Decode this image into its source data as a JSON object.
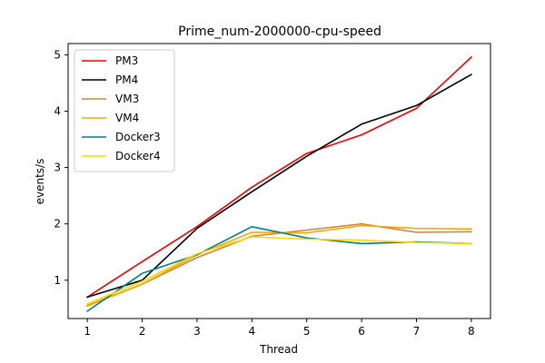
{
  "chart_data": {
    "type": "line",
    "title": "Prime_num-2000000-cpu-speed",
    "xlabel": "Thread",
    "ylabel": "events/s",
    "x": [
      1,
      2,
      3,
      4,
      5,
      6,
      7,
      8
    ],
    "xlim": [
      0.65,
      8.35
    ],
    "ylim": [
      0.32,
      5.2
    ],
    "xticks": [
      1,
      2,
      3,
      4,
      5,
      6,
      7,
      8
    ],
    "yticks": [
      1,
      2,
      3,
      4,
      5
    ],
    "grid": false,
    "legend_position": "top-left",
    "series": [
      {
        "name": "PM3",
        "color": "#ee0000",
        "values": [
          0.7,
          1.33,
          1.95,
          2.65,
          3.25,
          3.58,
          4.05,
          4.96
        ]
      },
      {
        "name": "PM4",
        "color": "#000000",
        "values": [
          0.7,
          1.0,
          1.92,
          2.57,
          3.2,
          3.77,
          4.1,
          4.65
        ]
      },
      {
        "name": "VM3",
        "color": "#cd853f",
        "values": [
          0.55,
          0.93,
          1.4,
          1.78,
          1.89,
          2.0,
          1.85,
          1.86
        ]
      },
      {
        "name": "VM4",
        "color": "#ffa500",
        "values": [
          0.54,
          0.93,
          1.45,
          1.85,
          1.84,
          1.97,
          1.92,
          1.91
        ]
      },
      {
        "name": "Docker3",
        "color": "#008080",
        "values": [
          0.45,
          1.12,
          1.45,
          1.95,
          1.75,
          1.65,
          1.68,
          1.65
        ]
      },
      {
        "name": "Docker4",
        "color": "#ffd700",
        "values": [
          0.58,
          0.98,
          1.47,
          1.77,
          1.73,
          1.71,
          1.67,
          1.65
        ]
      }
    ]
  }
}
